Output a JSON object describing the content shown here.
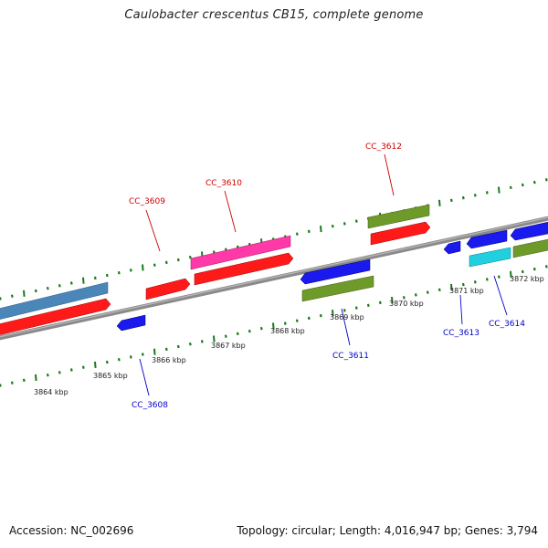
{
  "title": "Caulobacter crescentus CB15, complete genome",
  "footer": {
    "accession_label": "Accession: NC_002696",
    "summary": "Topology: circular; Length: 4,016,947 bp; Genes: 3,794"
  },
  "colors": {
    "backbone": "#888888",
    "ticks": "#1a7a1a",
    "forward_label": "#cc0000",
    "reverse_label": "#0000cc",
    "red": "#ff1a1a",
    "steelblue": "#4a86b8",
    "pink": "#ff3aa8",
    "olive": "#6e9a2a",
    "blue": "#1a1aee",
    "cyan": "#20d0e0"
  },
  "bp_labels": [
    "3864 kbp",
    "3865 kbp",
    "3866 kbp",
    "3867 kbp",
    "3868 kbp",
    "3869 kbp",
    "3870 kbp",
    "3871 kbp",
    "3872 kbp"
  ],
  "gene_labels": [
    {
      "id": "CC_3609",
      "strand": "forward"
    },
    {
      "id": "CC_3610",
      "strand": "forward"
    },
    {
      "id": "CC_3612",
      "strand": "forward"
    },
    {
      "id": "CC_3608",
      "strand": "reverse"
    },
    {
      "id": "CC_3611",
      "strand": "reverse"
    },
    {
      "id": "CC_3613",
      "strand": "reverse"
    },
    {
      "id": "CC_3614",
      "strand": "reverse"
    }
  ]
}
